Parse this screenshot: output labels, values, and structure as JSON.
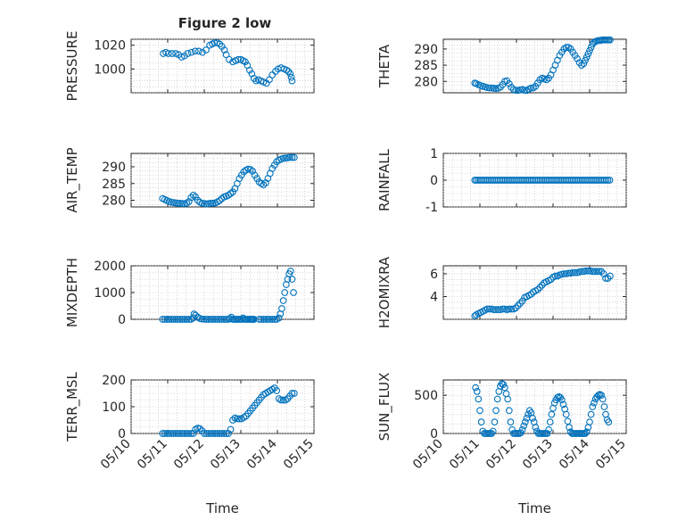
{
  "figure_title": "Figure 2 low",
  "marker_color": "#0072bd",
  "chart_data": [
    {
      "name": "pressure",
      "type": "scatter",
      "title": "Figure 2 low",
      "ylabel": "PRESSURE",
      "ylim": [
        980,
        1025
      ],
      "yticks": [
        1000,
        1020
      ],
      "xlabel": "",
      "xlim": [
        10,
        15
      ],
      "x": [
        10.88,
        10.95,
        11.02,
        11.12,
        11.22,
        11.3,
        11.38,
        11.46,
        11.55,
        11.65,
        11.75,
        11.85,
        11.95,
        12.05,
        12.15,
        12.22,
        12.28,
        12.35,
        12.42,
        12.48,
        12.55,
        12.6,
        12.68,
        12.78,
        12.86,
        12.93,
        13.0,
        13.06,
        13.12,
        13.18,
        13.24,
        13.3,
        13.36,
        13.42,
        13.48,
        13.55,
        13.62,
        13.7,
        13.78,
        13.86,
        13.95,
        14.02,
        14.1,
        14.18,
        14.25,
        14.3,
        14.35,
        14.38,
        14.4
      ],
      "y": [
        1013,
        1014,
        1013,
        1013,
        1013,
        1012,
        1010,
        1011,
        1013,
        1014,
        1015,
        1015,
        1014,
        1016,
        1020,
        1021,
        1022,
        1022,
        1021,
        1019,
        1016,
        1012,
        1008,
        1006,
        1007,
        1008,
        1008,
        1007,
        1006,
        1003,
        999,
        996,
        992,
        990,
        991,
        990,
        989,
        988,
        991,
        995,
        998,
        1000,
        1001,
        1000,
        999,
        998,
        996,
        993,
        990
      ]
    },
    {
      "name": "theta",
      "type": "scatter",
      "ylabel": "THETA",
      "ylim": [
        276.5,
        293
      ],
      "yticks": [
        280,
        285,
        290
      ],
      "xlabel": "",
      "xlim": [
        10,
        15
      ],
      "x": [
        10.86,
        10.9,
        10.96,
        11.02,
        11.08,
        11.14,
        11.2,
        11.26,
        11.32,
        11.38,
        11.44,
        11.5,
        11.56,
        11.62,
        11.68,
        11.74,
        11.8,
        11.86,
        11.92,
        11.98,
        12.04,
        12.1,
        12.16,
        12.22,
        12.28,
        12.34,
        12.4,
        12.46,
        12.52,
        12.58,
        12.64,
        12.7,
        12.76,
        12.82,
        12.88,
        12.94,
        13.0,
        13.06,
        13.12,
        13.18,
        13.24,
        13.3,
        13.36,
        13.42,
        13.48,
        13.54,
        13.6,
        13.66,
        13.72,
        13.78,
        13.84,
        13.88,
        13.92,
        13.96,
        14.0,
        14.04,
        14.08,
        14.12,
        14.16,
        14.2,
        14.24,
        14.28,
        14.32,
        14.36,
        14.4,
        14.44,
        14.48,
        14.52,
        14.56
      ],
      "y": [
        279.5,
        279.3,
        279,
        278.7,
        278.5,
        278.3,
        278.1,
        278,
        278,
        277.9,
        277.8,
        277.9,
        278.2,
        279,
        280,
        280.2,
        279.3,
        278.2,
        277.5,
        277.3,
        277.2,
        277.4,
        277.5,
        277.3,
        277.2,
        277.6,
        278,
        278,
        278.5,
        279.5,
        280.5,
        281,
        280.8,
        280.5,
        281,
        282,
        283.5,
        285,
        286.5,
        288,
        289,
        290,
        290.5,
        290.5,
        290,
        289,
        288,
        287,
        285.8,
        285,
        285.5,
        286.5,
        287.5,
        288.5,
        289.5,
        290.5,
        291.5,
        292,
        292.3,
        292.5,
        292.6,
        292.6,
        292.7,
        292.8,
        292.8,
        292.8,
        292.8,
        292.8,
        292.8
      ]
    },
    {
      "name": "air_temp",
      "type": "scatter",
      "ylabel": "AIR_TEMP",
      "ylim": [
        278,
        294
      ],
      "yticks": [
        280,
        285,
        290
      ],
      "xlabel": "",
      "xlim": [
        10,
        15
      ],
      "x": [
        10.86,
        10.92,
        10.98,
        11.04,
        11.1,
        11.16,
        11.22,
        11.28,
        11.34,
        11.4,
        11.46,
        11.52,
        11.58,
        11.64,
        11.7,
        11.76,
        11.82,
        11.88,
        11.94,
        12.0,
        12.06,
        12.12,
        12.18,
        12.24,
        12.3,
        12.36,
        12.42,
        12.48,
        12.54,
        12.6,
        12.66,
        12.72,
        12.78,
        12.84,
        12.9,
        12.96,
        13.02,
        13.08,
        13.14,
        13.2,
        13.26,
        13.32,
        13.38,
        13.44,
        13.5,
        13.56,
        13.62,
        13.68,
        13.74,
        13.8,
        13.86,
        13.92,
        13.98,
        14.04,
        14.1,
        14.16,
        14.22,
        14.28,
        14.34,
        14.4,
        14.46
      ],
      "y": [
        280.5,
        280.2,
        279.9,
        279.6,
        279.4,
        279.3,
        279.2,
        279.1,
        279.1,
        279,
        279,
        279.1,
        279.6,
        280.8,
        281.5,
        281,
        280,
        279.4,
        279.1,
        279,
        278.9,
        279,
        279.1,
        279.1,
        279.2,
        279.5,
        279.9,
        280.5,
        281,
        281.2,
        281.5,
        282,
        282.5,
        283.5,
        285,
        286.5,
        287.5,
        288.5,
        289,
        289.3,
        289.2,
        288.7,
        287.5,
        286.5,
        285.5,
        285,
        284.6,
        285.2,
        286.5,
        288,
        289.5,
        290.5,
        291.5,
        292,
        292.3,
        292.5,
        292.6,
        292.7,
        292.8,
        292.8,
        292.8
      ]
    },
    {
      "name": "rainfall",
      "type": "scatter",
      "ylabel": "RAINFALL",
      "ylim": [
        -1,
        1
      ],
      "yticks": [
        -1,
        0,
        1
      ],
      "xlabel": "",
      "xlim": [
        10,
        15
      ],
      "x": [
        10.86,
        10.9,
        10.95,
        11.0,
        11.05,
        11.1,
        11.15,
        11.2,
        11.25,
        11.3,
        11.35,
        11.4,
        11.45,
        11.5,
        11.55,
        11.6,
        11.65,
        11.7,
        11.75,
        11.8,
        11.85,
        11.9,
        11.95,
        12.0,
        12.05,
        12.1,
        12.15,
        12.2,
        12.25,
        12.3,
        12.35,
        12.4,
        12.45,
        12.5,
        12.55,
        12.6,
        12.65,
        12.7,
        12.75,
        12.8,
        12.85,
        12.9,
        12.95,
        13.0,
        13.05,
        13.1,
        13.15,
        13.2,
        13.25,
        13.3,
        13.35,
        13.4,
        13.45,
        13.5,
        13.55,
        13.6,
        13.65,
        13.7,
        13.75,
        13.8,
        13.85,
        13.9,
        13.95,
        14.0,
        14.05,
        14.1,
        14.15,
        14.2,
        14.25,
        14.3,
        14.35,
        14.4,
        14.45,
        14.5,
        14.55
      ],
      "y": [
        0,
        0,
        0,
        0,
        0,
        0,
        0,
        0,
        0,
        0,
        0,
        0,
        0,
        0,
        0,
        0,
        0,
        0,
        0,
        0,
        0,
        0,
        0,
        0,
        0,
        0,
        0,
        0,
        0,
        0,
        0,
        0,
        0,
        0,
        0,
        0,
        0,
        0,
        0,
        0,
        0,
        0,
        0,
        0,
        0,
        0,
        0,
        0,
        0,
        0,
        0,
        0,
        0,
        0,
        0,
        0,
        0,
        0,
        0,
        0,
        0,
        0,
        0,
        0,
        0,
        0,
        0,
        0,
        0,
        0,
        0,
        0,
        0,
        0,
        0
      ]
    },
    {
      "name": "mixdepth",
      "type": "scatter",
      "ylabel": "MIXDEPTH",
      "ylim": [
        0,
        2000
      ],
      "yticks": [
        0,
        1000,
        2000
      ],
      "xlabel": "",
      "xlim": [
        10,
        15
      ],
      "x": [
        10.86,
        10.92,
        10.98,
        11.04,
        11.1,
        11.16,
        11.22,
        11.28,
        11.34,
        11.4,
        11.46,
        11.52,
        11.58,
        11.64,
        11.7,
        11.72,
        11.76,
        11.82,
        11.88,
        11.94,
        12.0,
        12.06,
        12.12,
        12.18,
        12.24,
        12.3,
        12.36,
        12.42,
        12.48,
        12.54,
        12.6,
        12.66,
        12.7,
        12.74,
        12.78,
        12.82,
        12.86,
        12.9,
        12.94,
        12.98,
        13.02,
        13.06,
        13.1,
        13.14,
        13.18,
        13.22,
        13.26,
        13.28,
        13.3,
        13.32,
        13.34,
        13.36,
        13.5,
        13.56,
        13.62,
        13.68,
        13.74,
        13.8,
        13.86,
        13.92,
        13.98,
        14.04,
        14.08,
        14.12,
        14.16,
        14.2,
        14.24,
        14.28,
        14.32,
        14.36,
        14.4,
        14.44
      ],
      "y": [
        0,
        0,
        0,
        0,
        0,
        0,
        0,
        0,
        0,
        0,
        0,
        0,
        0,
        0,
        50,
        200,
        150,
        80,
        30,
        10,
        5,
        0,
        0,
        0,
        0,
        0,
        0,
        0,
        0,
        0,
        0,
        0,
        30,
        80,
        0,
        0,
        0,
        0,
        0,
        0,
        0,
        50,
        0,
        0,
        0,
        0,
        0,
        0,
        0,
        0,
        0,
        0,
        0,
        0,
        0,
        0,
        0,
        0,
        0,
        0,
        0,
        50,
        200,
        400,
        700,
        1000,
        1300,
        1500,
        1700,
        1800,
        1500,
        1000
      ]
    },
    {
      "name": "h2omixra",
      "type": "scatter",
      "ylabel": "H2OMIXRA",
      "ylim": [
        2,
        6.7
      ],
      "yticks": [
        4,
        6
      ],
      "xlabel": "",
      "xlim": [
        10,
        15
      ],
      "x": [
        10.86,
        10.9,
        10.96,
        11.02,
        11.08,
        11.14,
        11.2,
        11.26,
        11.32,
        11.38,
        11.44,
        11.5,
        11.56,
        11.62,
        11.68,
        11.74,
        11.8,
        11.86,
        11.92,
        11.98,
        12.04,
        12.1,
        12.16,
        12.22,
        12.28,
        12.34,
        12.4,
        12.46,
        12.52,
        12.58,
        12.64,
        12.7,
        12.76,
        12.82,
        12.88,
        12.94,
        13.0,
        13.06,
        13.12,
        13.18,
        13.24,
        13.3,
        13.36,
        13.42,
        13.48,
        13.54,
        13.6,
        13.66,
        13.72,
        13.78,
        13.84,
        13.9,
        13.96,
        14.02,
        14.08,
        14.14,
        14.2,
        14.26,
        14.32,
        14.38,
        14.44,
        14.5,
        14.56
      ],
      "y": [
        2.3,
        2.4,
        2.5,
        2.6,
        2.7,
        2.8,
        2.9,
        2.9,
        2.9,
        2.85,
        2.85,
        2.85,
        2.85,
        2.9,
        2.9,
        2.85,
        2.9,
        2.9,
        2.9,
        3.0,
        3.2,
        3.4,
        3.6,
        3.9,
        4.0,
        4.1,
        4.2,
        4.4,
        4.5,
        4.6,
        4.8,
        5.0,
        5.2,
        5.3,
        5.4,
        5.5,
        5.7,
        5.8,
        5.8,
        5.9,
        5.95,
        6.0,
        6.0,
        6.05,
        6.05,
        6.1,
        6.1,
        6.1,
        6.15,
        6.2,
        6.2,
        6.25,
        6.25,
        6.25,
        6.2,
        6.2,
        6.2,
        6.2,
        6.2,
        6.0,
        5.6,
        5.6,
        5.8
      ]
    },
    {
      "name": "terr_msl",
      "type": "scatter",
      "ylabel": "TERR_MSL",
      "ylim": [
        0,
        200
      ],
      "yticks": [
        0,
        100,
        200
      ],
      "xlabel": "Time",
      "xlim": [
        10,
        15
      ],
      "xticks": [
        10,
        11,
        12,
        13,
        14,
        15
      ],
      "xticklabels": [
        "05/10",
        "05/11",
        "05/12",
        "05/13",
        "05/14",
        "05/15"
      ],
      "x": [
        10.86,
        10.92,
        10.98,
        11.04,
        11.1,
        11.16,
        11.22,
        11.28,
        11.34,
        11.4,
        11.46,
        11.52,
        11.58,
        11.64,
        11.7,
        11.76,
        11.82,
        11.88,
        11.94,
        12.0,
        12.06,
        12.12,
        12.18,
        12.24,
        12.3,
        12.36,
        12.42,
        12.48,
        12.54,
        12.6,
        12.66,
        12.72,
        12.78,
        12.84,
        12.9,
        12.96,
        13.02,
        13.08,
        13.14,
        13.2,
        13.26,
        13.32,
        13.38,
        13.44,
        13.5,
        13.56,
        13.62,
        13.68,
        13.74,
        13.8,
        13.86,
        13.92,
        13.98,
        14.04,
        14.1,
        14.16,
        14.22,
        14.28,
        14.34,
        14.4,
        14.46
      ],
      "y": [
        0,
        0,
        0,
        0,
        0,
        0,
        0,
        0,
        0,
        0,
        0,
        0,
        0,
        0,
        0,
        15,
        20,
        18,
        10,
        0,
        0,
        0,
        0,
        0,
        0,
        0,
        0,
        0,
        0,
        0,
        0,
        15,
        50,
        58,
        55,
        55,
        55,
        60,
        65,
        75,
        85,
        95,
        105,
        115,
        125,
        135,
        145,
        150,
        155,
        160,
        165,
        170,
        160,
        130,
        125,
        125,
        125,
        130,
        140,
        150,
        150
      ]
    },
    {
      "name": "sun_flux",
      "type": "scatter",
      "ylabel": "SUN_FLUX",
      "ylim": [
        0,
        700
      ],
      "yticks": [
        0,
        500
      ],
      "xlabel": "Time",
      "xlim": [
        10,
        15
      ],
      "xticks": [
        10,
        11,
        12,
        13,
        14,
        15
      ],
      "xticklabels": [
        "05/10",
        "05/11",
        "05/12",
        "05/13",
        "05/14",
        "05/15"
      ],
      "x": [
        10.88,
        10.92,
        10.96,
        11.0,
        11.04,
        11.08,
        11.12,
        11.16,
        11.2,
        11.24,
        11.28,
        11.32,
        11.36,
        11.4,
        11.44,
        11.48,
        11.52,
        11.56,
        11.6,
        11.64,
        11.68,
        11.72,
        11.76,
        11.8,
        11.84,
        11.88,
        11.92,
        11.96,
        12.0,
        12.04,
        12.08,
        12.12,
        12.16,
        12.2,
        12.24,
        12.28,
        12.32,
        12.36,
        12.4,
        12.44,
        12.48,
        12.52,
        12.56,
        12.6,
        12.64,
        12.68,
        12.72,
        12.76,
        12.8,
        12.84,
        12.88,
        12.92,
        12.96,
        13.0,
        13.04,
        13.08,
        13.12,
        13.16,
        13.2,
        13.24,
        13.28,
        13.32,
        13.36,
        13.4,
        13.44,
        13.48,
        13.52,
        13.56,
        13.6,
        13.64,
        13.68,
        13.72,
        13.76,
        13.8,
        13.84,
        13.88,
        13.92,
        13.96,
        14.0,
        14.04,
        14.08,
        14.12,
        14.16,
        14.2,
        14.24,
        14.28,
        14.32,
        14.36,
        14.4,
        14.44,
        14.48,
        14.52
      ],
      "y": [
        600,
        550,
        450,
        300,
        150,
        30,
        0,
        0,
        0,
        0,
        0,
        0,
        30,
        150,
        300,
        450,
        550,
        620,
        650,
        640,
        600,
        520,
        450,
        300,
        150,
        50,
        0,
        0,
        0,
        0,
        0,
        10,
        50,
        100,
        150,
        200,
        250,
        300,
        270,
        200,
        150,
        80,
        30,
        0,
        0,
        0,
        0,
        0,
        0,
        0,
        50,
        150,
        250,
        330,
        400,
        440,
        470,
        480,
        470,
        440,
        380,
        320,
        250,
        160,
        80,
        20,
        0,
        0,
        0,
        0,
        0,
        0,
        0,
        0,
        0,
        0,
        20,
        80,
        150,
        250,
        350,
        400,
        450,
        480,
        500,
        510,
        500,
        450,
        350,
        250,
        180,
        150
      ]
    }
  ]
}
